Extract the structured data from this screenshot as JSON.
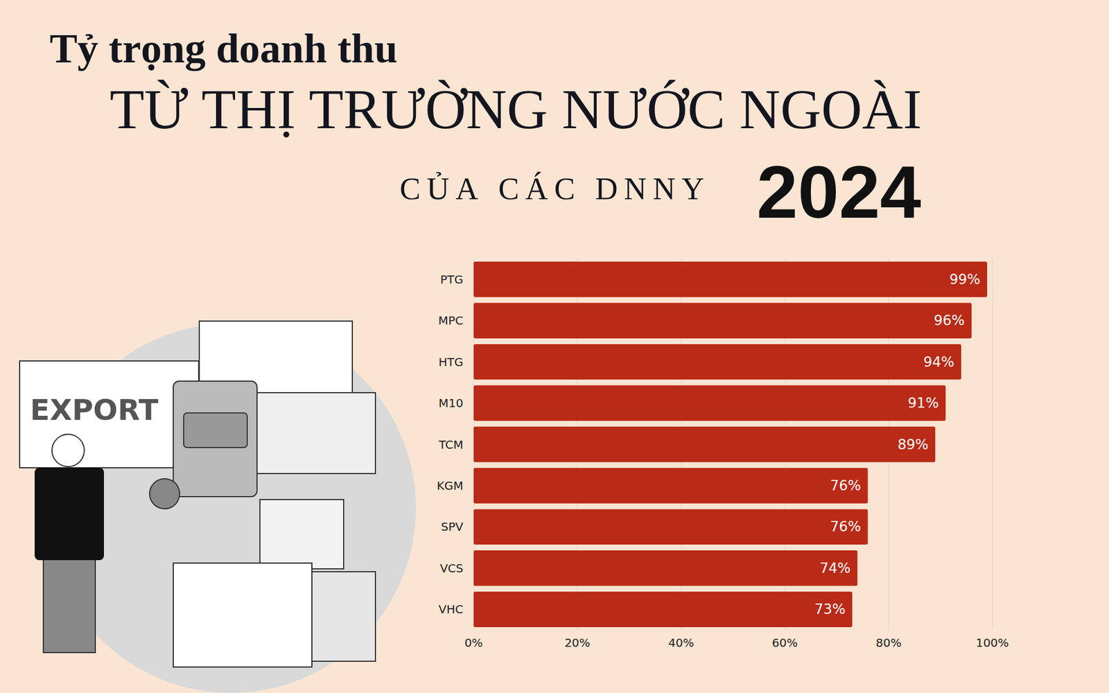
{
  "chart_data": {
    "type": "bar",
    "title": "Tỷ trọng doanh thu",
    "subtitle": [
      "TỪ THỊ TRƯỜNG NƯỚC NGOÀI",
      "CỦA CÁC DNNY",
      "2024"
    ],
    "annotations": [
      "EXPORT"
    ],
    "categories": [
      "PTG",
      "MPC",
      "HTG",
      "M10",
      "TCM",
      "KGM",
      "SPV",
      "VCS",
      "VHC"
    ],
    "values": [
      99,
      96,
      94,
      91,
      89,
      76,
      76,
      74,
      73
    ],
    "value_labels": [
      "99%",
      "96%",
      "94%",
      "91%",
      "89%",
      "76%",
      "76%",
      "74%",
      "73%"
    ],
    "color": "#b92a17",
    "orientation": "horizontal",
    "data_labels": true,
    "grid": true,
    "xlim": [
      0,
      100
    ],
    "xticks": [
      {
        "value": 0,
        "label": "0%"
      },
      {
        "value": 20,
        "label": "20%"
      },
      {
        "value": 40,
        "label": "40%"
      },
      {
        "value": 60,
        "label": "60%"
      },
      {
        "value": 80,
        "label": "80%"
      },
      {
        "value": 100,
        "label": "100%"
      }
    ]
  }
}
